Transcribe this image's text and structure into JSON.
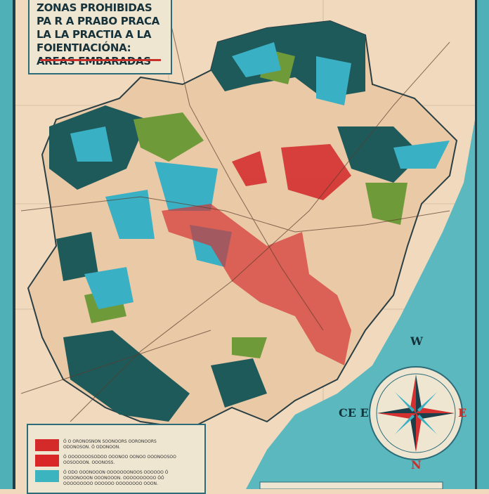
{
  "title": {
    "lines": [
      "ZONAS PROHIBIDAS",
      "PA R A PRABO PRACA",
      "LA LA PRACTIA A LA",
      "FOIENTIACIÓNA:",
      "AREAS EMBARADAS"
    ]
  },
  "legend": {
    "items": [
      {
        "color": "#d42a2a",
        "text": "Ó O ORONOSNON SOONOORS OORONOORS ODONOSON. Ó ODONOON."
      },
      {
        "color": "#d92626",
        "text": "Ó OOOOOOOSODOO OOONOO OONOO OOONOOSOO OOSOOOON. OOONOSS."
      },
      {
        "color": "#3bb4bf",
        "text": "Ó ODO OOONOOON OOOOOOONOOS OOOOOO Ó OOOONOOON OOONOOON. OOOOOOOOOO ÓÓ OOOOOOOOO OOOOOO OOOOOOOO OOON."
      }
    ]
  },
  "compass": {
    "north_top": "W",
    "east": "E",
    "west": "CE E",
    "south": "N"
  },
  "colors": {
    "sea": "#5bb8bf",
    "land": "#f0d9bd",
    "forest": "#1f5a5a",
    "green": "#6f9a3a",
    "cyan": "#3ab0c4",
    "red": "#d43030",
    "border": "#2c6b78"
  }
}
